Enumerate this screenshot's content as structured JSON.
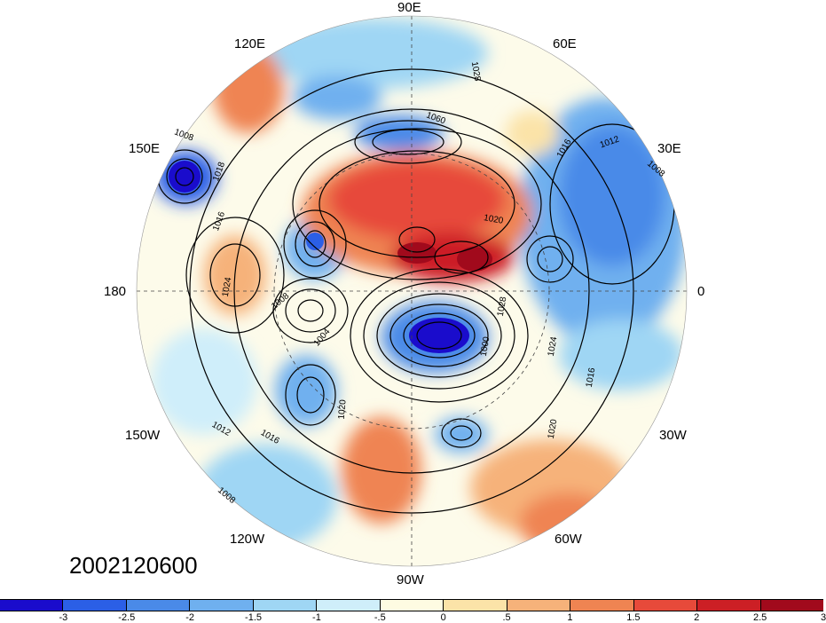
{
  "date_stamp": "2002120600",
  "longitude_labels": [
    {
      "key": "90e",
      "text": "90E"
    },
    {
      "key": "120e",
      "text": "120E"
    },
    {
      "key": "60e",
      "text": "60E"
    },
    {
      "key": "150e",
      "text": "150E"
    },
    {
      "key": "30e",
      "text": "30E"
    },
    {
      "key": "180",
      "text": "180"
    },
    {
      "key": "0",
      "text": "0"
    },
    {
      "key": "150w",
      "text": "150W"
    },
    {
      "key": "30w",
      "text": "30W"
    },
    {
      "key": "120w",
      "text": "120W"
    },
    {
      "key": "60w",
      "text": "60W"
    },
    {
      "key": "90w",
      "text": "90W"
    }
  ],
  "isobar_labels": [
    "1008",
    "1018",
    "1016",
    "1024",
    "1008",
    "1004",
    "1020",
    "1012",
    "1016",
    "1008",
    "1000",
    "1024",
    "1020",
    "1028",
    "1016",
    "1020",
    "1012",
    "1008",
    "1016",
    "1060",
    "1028"
  ],
  "colorbar": {
    "colors": [
      "#1a0ccc",
      "#2b5fe6",
      "#4a8ae8",
      "#6fb0ef",
      "#9fd6f4",
      "#cfeefa",
      "#fefbe2",
      "#fbe3a8",
      "#f6b27a",
      "#ef8452",
      "#e74a3a",
      "#cc1f25",
      "#a10a1c"
    ],
    "ticks": [
      "-3",
      "-2.5",
      "-2",
      "-1.5",
      "-1",
      "-.5",
      "0",
      ".5",
      "1",
      "1.5",
      "2",
      "2.5",
      "3"
    ]
  }
}
